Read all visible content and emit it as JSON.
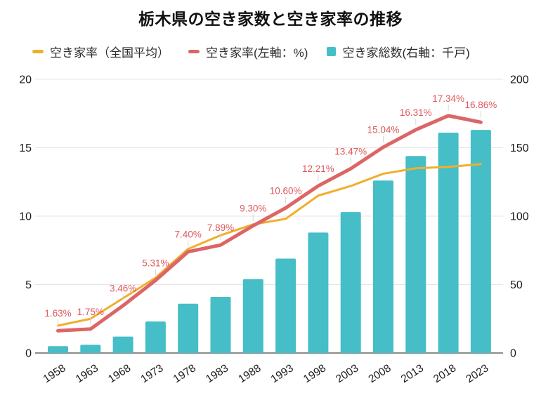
{
  "title": "栃木県の空き家数と空き家率の推移",
  "legend": [
    {
      "label": "空き家率（全国平均）",
      "marker": "line",
      "color": "#F0AF2D"
    },
    {
      "label": "空き家率(左軸：%)",
      "marker": "line",
      "color": "#DC6566"
    },
    {
      "label": "空き家総数(右軸：千戸)",
      "marker": "square",
      "color": "#45BEC8"
    }
  ],
  "colors": {
    "bar": "#45BEC8",
    "rate_line": "#DC6566",
    "rate_label": "#DF585C",
    "national_line": "#F0AF2D",
    "grid": "#E5E5E5",
    "axis": "#8C8C8C",
    "leader": "#D6D6D6",
    "tick_text": "#1A1A1A"
  },
  "chart_data": {
    "type": "combo",
    "title": "栃木県の空き家数と空き家率の推移",
    "categories": [
      "1958",
      "1963",
      "1968",
      "1973",
      "1978",
      "1983",
      "1988",
      "1993",
      "1998",
      "2003",
      "2008",
      "2013",
      "2018",
      "2023"
    ],
    "series": [
      {
        "name": "空き家率（全国平均）",
        "type": "line",
        "axis": "left",
        "values": [
          2.0,
          2.5,
          4.0,
          5.5,
          7.6,
          8.6,
          9.4,
          9.8,
          11.5,
          12.2,
          13.1,
          13.5,
          13.6,
          13.8
        ]
      },
      {
        "name": "空き家率(左軸：%)",
        "type": "line",
        "axis": "left",
        "values": [
          1.63,
          1.75,
          3.46,
          5.31,
          7.4,
          7.89,
          9.3,
          10.6,
          12.21,
          13.47,
          15.04,
          16.31,
          17.34,
          16.86
        ],
        "labels": [
          "1.63%",
          "1.75%",
          "3.46%",
          "5.31%",
          "7.40%",
          "7.89%",
          "9.30%",
          "10.60%",
          "12.21%",
          "13.47%",
          "15.04%",
          "16.31%",
          "17.34%",
          "16.86%"
        ]
      },
      {
        "name": "空き家総数(右軸：千戸)",
        "type": "bar",
        "axis": "right",
        "values": [
          5,
          6,
          12,
          23,
          36,
          41,
          54,
          69,
          88,
          103,
          126,
          144,
          161,
          163
        ]
      }
    ],
    "left_axis": {
      "min": 0,
      "max": 20,
      "ticks": [
        0,
        5,
        10,
        15,
        20
      ],
      "label": "空き家率(左軸：%)"
    },
    "right_axis": {
      "min": 0,
      "max": 200,
      "ticks": [
        0,
        50,
        100,
        150,
        200
      ],
      "label": "空き家総数(右軸：千戸)"
    },
    "grid": true,
    "legend_position": "top"
  }
}
